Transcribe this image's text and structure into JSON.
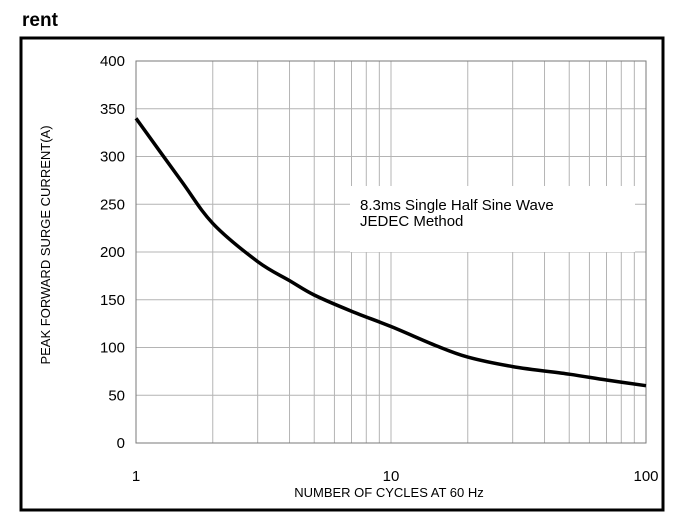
{
  "header": {
    "text": "rent"
  },
  "chart_data": {
    "type": "line",
    "title": "",
    "xlabel": "NUMBER OF CYCLES AT 60 Hz",
    "ylabel": "PEAK FORWARD SURGE CURRENT(A)",
    "xscale": "log",
    "xlim": [
      1,
      100
    ],
    "ylim": [
      0,
      400
    ],
    "x_ticks": [
      1,
      10,
      100
    ],
    "y_ticks": [
      0,
      50,
      100,
      150,
      200,
      250,
      300,
      350,
      400
    ],
    "grid": true,
    "annotation": [
      "8.3ms Single Half Sine Wave",
      "JEDEC Method"
    ],
    "series": [
      {
        "x": [
          1,
          1.5,
          2,
          3,
          4,
          5,
          7,
          10,
          15,
          20,
          30,
          50,
          70,
          100
        ],
        "y": [
          340,
          275,
          230,
          190,
          170,
          155,
          138,
          122,
          102,
          90,
          80,
          72,
          66,
          60
        ]
      }
    ]
  }
}
